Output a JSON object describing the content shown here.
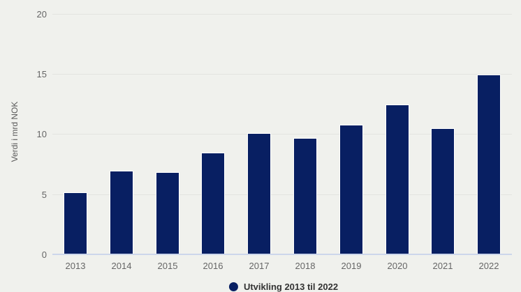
{
  "chart_data": {
    "type": "bar",
    "title": "",
    "categories": [
      "2013",
      "2014",
      "2015",
      "2016",
      "2017",
      "2018",
      "2019",
      "2020",
      "2021",
      "2022"
    ],
    "values": [
      5.1,
      6.9,
      6.8,
      8.4,
      10.0,
      9.6,
      10.7,
      12.4,
      10.4,
      14.9
    ],
    "ylabel": "Verdi i mrd NOK",
    "xlabel": "",
    "ylim": [
      0,
      20
    ],
    "yticks": [
      0,
      5,
      10,
      15,
      20
    ],
    "grid": true,
    "legend_position": "bottom-center",
    "legend": "Utvikling 2013 til 2022",
    "colors": {
      "bar": "#081f62",
      "background": "#f0f1ed",
      "grid": "#e3e4e0",
      "axis_line": "#ccd6eb",
      "tick_label": "#666666",
      "axis_title": "#5a5a5a",
      "legend_text": "#333333"
    }
  }
}
